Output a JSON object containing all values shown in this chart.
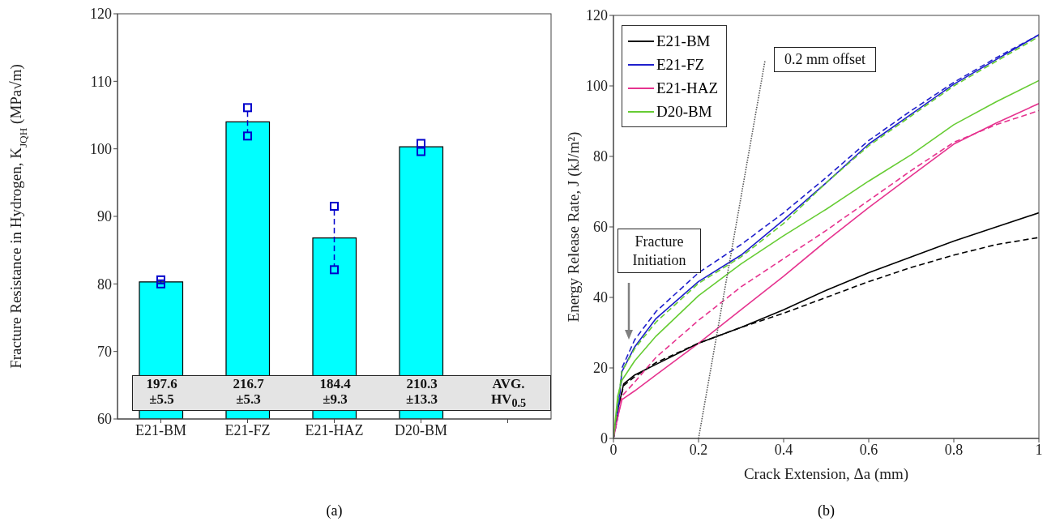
{
  "chart_data": [
    {
      "type": "bar",
      "title": "(a)",
      "ylabel": "Fracture Resistance in Hydrogen, K$_{JQH}$ (MPa√m)",
      "categories": [
        "E21-BM",
        "E21-FZ",
        "E21-HAZ",
        "D20-BM",
        null
      ],
      "ylim": [
        60,
        120
      ],
      "yticks": [
        60,
        70,
        80,
        90,
        100,
        110,
        120
      ],
      "marker": "square",
      "line_style": "dashed",
      "series": [
        {
          "type": "bar",
          "color": "#00ffff",
          "values": [
            80.3,
            104.0,
            86.8,
            100.3,
            null
          ]
        },
        {
          "type": "scatter",
          "color": "#0000cc",
          "x": [
            "E21-BM",
            "E21-FZ",
            "E21-HAZ",
            "D20-BM"
          ],
          "values": [
            80.6,
            106.1,
            91.5,
            100.8
          ]
        },
        {
          "type": "scatter",
          "color": "#0000cc",
          "x": [
            "E21-BM",
            "E21-FZ",
            "E21-HAZ",
            "D20-BM"
          ],
          "values": [
            80.0,
            101.9,
            82.1,
            99.6
          ]
        }
      ],
      "annotations": [
        "197.6",
        "±5.5",
        "216.7",
        "±5.3",
        "184.4",
        "±9.3",
        "210.3",
        "±13.3",
        "AVG.",
        "HV$_{0.5}$"
      ]
    },
    {
      "type": "line",
      "title": "(b)",
      "xlabel": "Crack Extension, Δa (mm)",
      "ylabel": "Energy Release Rate, J (kJ/m²)",
      "xlim": [
        0,
        1
      ],
      "xticks": [
        0,
        0.2,
        0.4,
        0.6,
        0.8,
        1
      ],
      "ylim": [
        0,
        120
      ],
      "yticks": [
        0,
        20,
        40,
        60,
        80,
        100,
        120
      ],
      "legend": "top left",
      "marker": "none",
      "line_style": "solid",
      "series": [
        {
          "name": "E21-BM",
          "color": "#000000",
          "x": [
            0,
            0.01,
            0.024,
            0.05,
            0.1,
            0.2,
            0.3,
            0.4,
            0.5,
            0.6,
            0.7,
            0.8,
            0.9,
            1.0
          ],
          "values": [
            0,
            8,
            15.5,
            18,
            21,
            27,
            31.5,
            36.5,
            42,
            47,
            51.5,
            56,
            60,
            64
          ]
        },
        {
          "name": "E21-FZ",
          "color": "#1f1fcc",
          "x": [
            0,
            0.01,
            0.02,
            0.05,
            0.1,
            0.2,
            0.3,
            0.4,
            0.5,
            0.6,
            0.7,
            0.8,
            0.9,
            1.0
          ],
          "values": [
            0,
            8,
            19,
            26,
            34,
            44.5,
            52,
            62,
            72.5,
            83.5,
            92,
            100.5,
            107.5,
            114.5
          ]
        },
        {
          "name": "E21-HAZ",
          "color": "#e6338f",
          "x": [
            0,
            0.01,
            0.02,
            0.05,
            0.1,
            0.2,
            0.3,
            0.4,
            0.5,
            0.6,
            0.7,
            0.8,
            0.9,
            1.0
          ],
          "values": [
            0,
            6,
            11,
            13.5,
            18,
            27,
            36.5,
            46,
            56,
            65.5,
            74.5,
            83.5,
            89.5,
            95
          ]
        },
        {
          "name": "D20-BM",
          "color": "#66cc33",
          "x": [
            0,
            0.01,
            0.02,
            0.05,
            0.1,
            0.2,
            0.3,
            0.4,
            0.5,
            0.6,
            0.7,
            0.8,
            0.9,
            1.0
          ],
          "values": [
            0,
            12,
            16.5,
            22,
            29,
            40.5,
            49.5,
            57.5,
            65,
            73,
            80.5,
            89,
            95.5,
            101.5
          ]
        },
        {
          "color": "#000000",
          "line_style": "dashed",
          "x": [
            0,
            0.01,
            0.024,
            0.05,
            0.1,
            0.2,
            0.3,
            0.4,
            0.5,
            0.6,
            0.7,
            0.8,
            0.9,
            1.0
          ],
          "values": [
            0,
            8,
            15,
            17.5,
            21.5,
            27,
            31.5,
            35.5,
            40,
            44.5,
            48.5,
            52,
            55,
            57
          ]
        },
        {
          "color": "#1f1fcc",
          "line_style": "dashed",
          "x": [
            0,
            0.01,
            0.02,
            0.05,
            0.1,
            0.2,
            0.3,
            0.4,
            0.5,
            0.6,
            0.7,
            0.8,
            0.9,
            1.0
          ],
          "values": [
            0,
            6,
            20,
            28,
            36,
            47,
            55,
            64,
            74,
            84.5,
            93,
            101,
            108,
            114.5
          ]
        },
        {
          "color": "#e6338f",
          "line_style": "dashed",
          "x": [
            0,
            0.01,
            0.02,
            0.05,
            0.1,
            0.2,
            0.3,
            0.4,
            0.5,
            0.6,
            0.7,
            0.8,
            0.9,
            1.0
          ],
          "values": [
            0,
            6,
            12,
            16,
            23,
            33.5,
            43,
            51,
            59,
            67.5,
            76,
            84,
            89,
            93
          ]
        },
        {
          "color": "#66cc33",
          "line_style": "dashed",
          "x": [
            0,
            0.01,
            0.02,
            0.05,
            0.1,
            0.2,
            0.3,
            0.4,
            0.5,
            0.6,
            0.7,
            0.8,
            0.9,
            1.0
          ],
          "values": [
            0,
            10,
            19,
            25.5,
            33,
            44,
            51.5,
            61,
            72.5,
            83,
            91.5,
            100,
            107,
            114
          ]
        },
        {
          "color": "#555555",
          "line_style": "dotted",
          "x": [
            0.2,
            0.356
          ],
          "values": [
            0,
            107
          ]
        }
      ],
      "annotations": [
        {
          "text": "0.2 mm offset",
          "x": 0.356,
          "y": 107
        },
        "Fracture Initiation"
      ]
    }
  ]
}
